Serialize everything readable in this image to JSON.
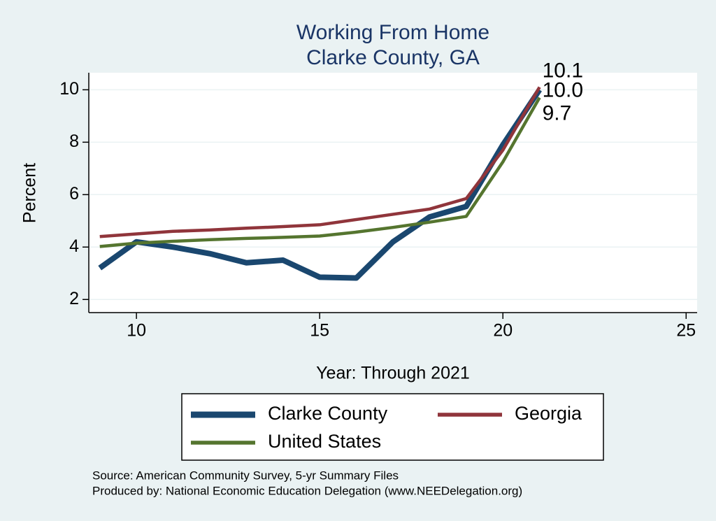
{
  "chart_data": {
    "type": "line",
    "title": "Working From Home",
    "subtitle": "Clarke County, GA",
    "x_label": "Year: Through 2021",
    "y_label": "Percent",
    "x": [
      9,
      10,
      11,
      12,
      13,
      14,
      15,
      16,
      17,
      18,
      19,
      20,
      21
    ],
    "series": [
      {
        "name": "Clarke County",
        "color": "#1a476f",
        "values": [
          3.2,
          4.2,
          4.0,
          3.75,
          3.4,
          3.5,
          2.85,
          2.82,
          4.2,
          5.15,
          5.55,
          7.9,
          10.0
        ],
        "value_labels": [
          null,
          null,
          null,
          null,
          null,
          null,
          null,
          null,
          null,
          null,
          null,
          null,
          "10.0"
        ]
      },
      {
        "name": "Georgia",
        "color": "#90353b",
        "values": [
          4.4,
          4.5,
          4.6,
          4.65,
          4.72,
          4.78,
          4.85,
          5.05,
          5.25,
          5.45,
          5.85,
          7.7,
          10.1
        ],
        "value_labels": [
          null,
          null,
          null,
          null,
          null,
          null,
          null,
          null,
          null,
          null,
          null,
          null,
          "10.1"
        ]
      },
      {
        "name": "United States",
        "color": "#55752f",
        "values": [
          4.02,
          4.15,
          4.22,
          4.28,
          4.33,
          4.37,
          4.42,
          4.57,
          4.75,
          4.95,
          5.17,
          7.25,
          9.7
        ],
        "value_labels": [
          null,
          null,
          null,
          null,
          null,
          null,
          null,
          null,
          null,
          null,
          null,
          null,
          "9.7"
        ]
      }
    ],
    "xlim": [
      8.7,
      25.3
    ],
    "xticks": [
      10,
      15,
      20,
      25
    ],
    "ylim": [
      1.5,
      10.65
    ],
    "yticks": [
      2,
      4,
      6,
      8,
      10
    ],
    "grid": true,
    "notes": [
      "Source: American Community Survey, 5-yr Summary Files",
      "Produced by: National Economic Education Delegation (www.NEEDelegation.org)"
    ]
  }
}
